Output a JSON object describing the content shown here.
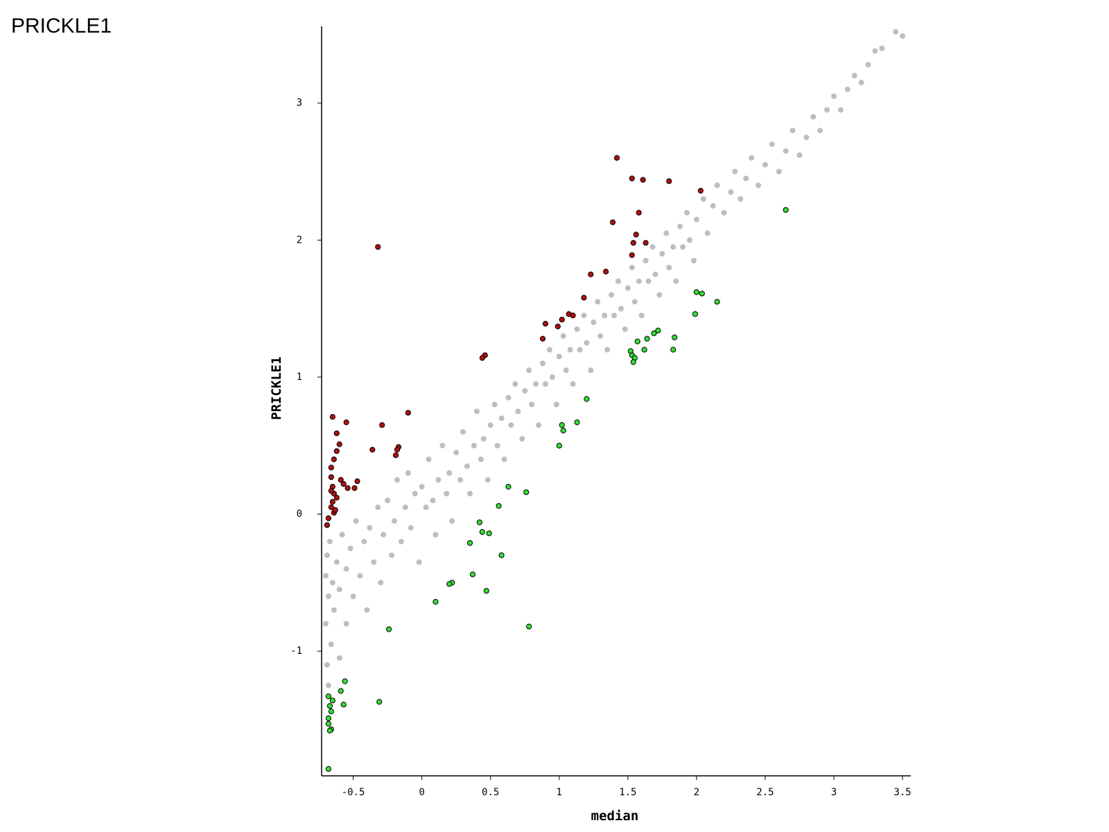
{
  "chart_data": {
    "type": "scatter",
    "title": "PRICKLE1",
    "x_label": "median",
    "y_label": "PRICKLE1",
    "xlim": [
      -0.73,
      3.56
    ],
    "ylim": [
      -1.91,
      3.56
    ],
    "xticks": [
      -0.5,
      0,
      0.5,
      1,
      1.5,
      2,
      2.5,
      3,
      3.5
    ],
    "yticks": [
      -1,
      0,
      1,
      2,
      3
    ],
    "grid": false,
    "series": [
      {
        "color": "#bebebe",
        "x": [
          -0.7,
          -0.7,
          -0.69,
          -0.69,
          -0.68,
          -0.68,
          -0.67,
          -0.66,
          -0.65,
          -0.64,
          -0.62,
          -0.6,
          -0.6,
          -0.58,
          -0.55,
          -0.55,
          -0.52,
          -0.5,
          -0.48,
          -0.45,
          -0.42,
          -0.4,
          -0.38,
          -0.35,
          -0.32,
          -0.3,
          -0.28,
          -0.25,
          -0.22,
          -0.2,
          -0.18,
          -0.15,
          -0.12,
          -0.1,
          -0.08,
          -0.05,
          -0.02,
          0.0,
          0.03,
          0.05,
          0.08,
          0.1,
          0.12,
          0.15,
          0.18,
          0.2,
          0.22,
          0.25,
          0.28,
          0.3,
          0.33,
          0.35,
          0.38,
          0.4,
          0.43,
          0.45,
          0.48,
          0.5,
          0.53,
          0.55,
          0.58,
          0.6,
          0.63,
          0.65,
          0.68,
          0.7,
          0.73,
          0.75,
          0.78,
          0.8,
          0.83,
          0.85,
          0.88,
          0.9,
          0.93,
          0.95,
          0.98,
          1.0,
          1.03,
          1.05,
          1.08,
          1.1,
          1.13,
          1.15,
          1.18,
          1.2,
          1.23,
          1.25,
          1.28,
          1.3,
          1.33,
          1.35,
          1.38,
          1.4,
          1.43,
          1.45,
          1.48,
          1.5,
          1.53,
          1.55,
          1.58,
          1.6,
          1.63,
          1.65,
          1.68,
          1.7,
          1.73,
          1.75,
          1.78,
          1.8,
          1.83,
          1.85,
          1.88,
          1.9,
          1.93,
          1.95,
          1.98,
          2.0,
          2.05,
          2.08,
          2.12,
          2.15,
          2.2,
          2.25,
          2.28,
          2.32,
          2.36,
          2.4,
          2.45,
          2.5,
          2.55,
          2.6,
          2.65,
          2.7,
          2.75,
          2.8,
          2.85,
          2.9,
          2.95,
          3.0,
          3.05,
          3.1,
          3.15,
          3.2,
          3.25,
          3.3,
          3.35,
          3.45,
          3.5
        ],
        "values": [
          -0.45,
          -0.8,
          -1.1,
          -0.3,
          -0.6,
          -1.25,
          -0.2,
          -0.95,
          -0.5,
          -0.7,
          -0.35,
          -1.05,
          -0.55,
          -0.15,
          -0.8,
          -0.4,
          -0.25,
          -0.6,
          -0.05,
          -0.45,
          -0.2,
          -0.7,
          -0.1,
          -0.35,
          0.05,
          -0.5,
          -0.15,
          0.1,
          -0.3,
          -0.05,
          0.25,
          -0.2,
          0.05,
          0.3,
          -0.1,
          0.15,
          -0.35,
          0.2,
          0.05,
          0.4,
          0.1,
          -0.15,
          0.25,
          0.5,
          0.15,
          0.3,
          -0.05,
          0.45,
          0.25,
          0.6,
          0.35,
          0.15,
          0.5,
          0.75,
          0.4,
          0.55,
          0.25,
          0.65,
          0.8,
          0.5,
          0.7,
          0.4,
          0.85,
          0.65,
          0.95,
          0.75,
          0.55,
          0.9,
          1.05,
          0.8,
          0.95,
          0.65,
          1.1,
          0.95,
          1.2,
          1.0,
          0.8,
          1.15,
          1.3,
          1.05,
          1.2,
          0.95,
          1.35,
          1.2,
          1.45,
          1.25,
          1.05,
          1.4,
          1.55,
          1.3,
          1.45,
          1.2,
          1.6,
          1.45,
          1.7,
          1.5,
          1.35,
          1.65,
          1.8,
          1.55,
          1.7,
          1.45,
          1.85,
          1.7,
          1.95,
          1.75,
          1.6,
          1.9,
          2.05,
          1.8,
          1.95,
          1.7,
          2.1,
          1.95,
          2.2,
          2.0,
          1.85,
          2.15,
          2.3,
          2.05,
          2.25,
          2.4,
          2.2,
          2.35,
          2.5,
          2.3,
          2.45,
          2.6,
          2.4,
          2.55,
          2.7,
          2.5,
          2.65,
          2.8,
          2.62,
          2.75,
          2.9,
          2.8,
          2.95,
          3.05,
          2.95,
          3.1,
          3.2,
          3.15,
          3.28,
          3.38,
          3.4,
          3.52,
          3.49
        ]
      },
      {
        "color": "#b01010",
        "edgecolor": "#000000",
        "x": [
          1.42,
          1.53,
          1.61,
          1.8,
          2.03,
          1.58,
          1.39,
          1.56,
          1.54,
          1.63,
          1.53,
          -0.32,
          1.23,
          1.34,
          1.18,
          1.07,
          1.1,
          1.02,
          0.99,
          0.9,
          0.88,
          0.46,
          0.44,
          -0.1,
          -0.29,
          -0.36,
          -0.17,
          -0.18,
          -0.19,
          -0.65,
          -0.55,
          -0.62,
          -0.6,
          -0.62,
          -0.64,
          -0.66,
          -0.59,
          -0.57,
          -0.54,
          -0.49,
          -0.47,
          -0.66,
          -0.65,
          -0.64,
          -0.62,
          -0.65,
          -0.66,
          -0.64,
          -0.68,
          -0.69,
          -0.63,
          -0.66
        ],
        "values": [
          2.6,
          2.45,
          2.44,
          2.43,
          2.36,
          2.2,
          2.13,
          2.04,
          1.98,
          1.98,
          1.89,
          1.95,
          1.75,
          1.77,
          1.58,
          1.46,
          1.45,
          1.42,
          1.37,
          1.39,
          1.28,
          1.16,
          1.14,
          0.74,
          0.65,
          0.47,
          0.49,
          0.47,
          0.43,
          0.71,
          0.67,
          0.59,
          0.51,
          0.46,
          0.4,
          0.34,
          0.25,
          0.22,
          0.19,
          0.19,
          0.24,
          0.27,
          0.2,
          0.15,
          0.12,
          0.09,
          0.05,
          0.01,
          -0.03,
          -0.08,
          0.03,
          0.17
        ]
      },
      {
        "color": "#33dd33",
        "edgecolor": "#000000",
        "x": [
          2.65,
          2.0,
          2.04,
          2.15,
          1.99,
          1.72,
          1.69,
          1.84,
          1.64,
          1.57,
          1.83,
          1.62,
          1.52,
          1.53,
          1.55,
          1.54,
          1.2,
          1.13,
          1.02,
          1.03,
          1.0,
          0.63,
          0.76,
          0.56,
          0.42,
          0.44,
          0.49,
          0.35,
          0.58,
          0.37,
          0.22,
          0.2,
          0.47,
          0.1,
          0.78,
          -0.24,
          -0.56,
          -0.59,
          -0.31,
          -0.57,
          -0.68,
          -0.65,
          -0.67,
          -0.66,
          -0.68,
          -0.68,
          -0.66,
          -0.67,
          -0.68
        ],
        "values": [
          2.22,
          1.62,
          1.61,
          1.55,
          1.46,
          1.34,
          1.32,
          1.29,
          1.28,
          1.26,
          1.2,
          1.2,
          1.19,
          1.16,
          1.14,
          1.11,
          0.84,
          0.67,
          0.65,
          0.61,
          0.5,
          0.2,
          0.16,
          0.06,
          -0.06,
          -0.13,
          -0.14,
          -0.21,
          -0.3,
          -0.44,
          -0.5,
          -0.51,
          -0.56,
          -0.64,
          -0.82,
          -0.84,
          -1.22,
          -1.29,
          -1.37,
          -1.39,
          -1.33,
          -1.36,
          -1.4,
          -1.44,
          -1.49,
          -1.53,
          -1.57,
          -1.58,
          -1.86
        ]
      }
    ]
  }
}
